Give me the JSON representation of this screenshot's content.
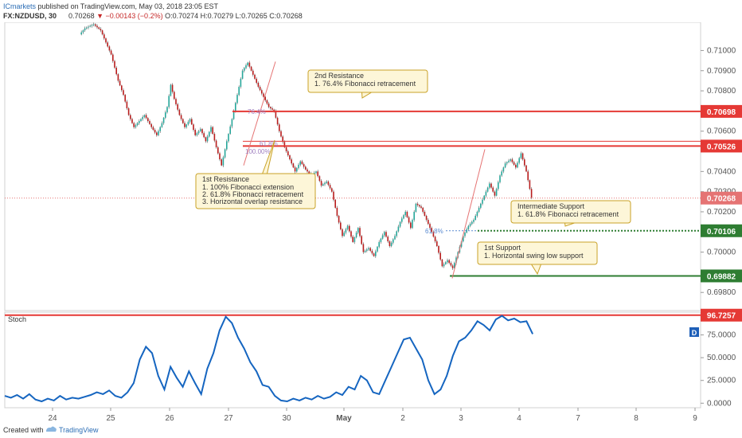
{
  "header": {
    "publisher": "ICmarkets",
    "published_text": "published on TradingView.com, May 03, 2018 23:05 EST",
    "symbol": "FX:NZDUSD, 30",
    "last": "0.70268",
    "change": "▼ −0.00143 (−0.2%)",
    "ohlc": "O:0.70274 H:0.70279 L:0.70265 C:0.70268"
  },
  "footer": {
    "created_with": "Created with",
    "brand": "TradingView"
  },
  "colors": {
    "up": "#26a69a",
    "down": "#b71c1c",
    "resistance": "#e53935",
    "support": "#2e7d32",
    "stoch": "#1565c0",
    "annotation_bg": "#fdf6d8",
    "annotation_border": "#c9a227"
  },
  "chart_data": [
    {
      "type": "candlestick",
      "symbol": "FX:NZDUSD",
      "interval": "30",
      "x_tick_labels": [
        "24",
        "25",
        "26",
        "27",
        "30",
        "May",
        "2",
        "3",
        "4",
        "7",
        "8",
        "9"
      ],
      "y_tick_labels": [
        "0.71000",
        "0.70900",
        "0.70800",
        "0.70600",
        "0.70400",
        "0.70300",
        "0.70200",
        "0.70000",
        "0.69800"
      ],
      "ylim": [
        0.6971,
        0.7114
      ],
      "price_marker": 0.70268,
      "path": [
        [
          0,
          0.7108
        ],
        [
          3,
          0.7111
        ],
        [
          8,
          0.7113
        ],
        [
          12,
          0.711
        ],
        [
          15,
          0.7104
        ],
        [
          18,
          0.7098
        ],
        [
          22,
          0.7085
        ],
        [
          25,
          0.7078
        ],
        [
          28,
          0.7068
        ],
        [
          31,
          0.7062
        ],
        [
          34,
          0.7065
        ],
        [
          37,
          0.7068
        ],
        [
          41,
          0.7062
        ],
        [
          44,
          0.7058
        ],
        [
          47,
          0.7064
        ],
        [
          50,
          0.7072
        ],
        [
          52,
          0.7083
        ],
        [
          54,
          0.7076
        ],
        [
          57,
          0.7068
        ],
        [
          60,
          0.7062
        ],
        [
          63,
          0.7066
        ],
        [
          66,
          0.7058
        ],
        [
          69,
          0.7061
        ],
        [
          72,
          0.7055
        ],
        [
          75,
          0.7062
        ],
        [
          78,
          0.7052
        ],
        [
          81,
          0.7043
        ],
        [
          84,
          0.7055
        ],
        [
          87,
          0.7066
        ],
        [
          90,
          0.7078
        ],
        [
          93,
          0.709
        ],
        [
          96,
          0.7094
        ],
        [
          99,
          0.7088
        ],
        [
          102,
          0.7082
        ],
        [
          105,
          0.7077
        ],
        [
          108,
          0.7072
        ],
        [
          111,
          0.707
        ],
        [
          114,
          0.706
        ],
        [
          117,
          0.7052
        ],
        [
          120,
          0.7046
        ],
        [
          123,
          0.704
        ],
        [
          126,
          0.7045
        ],
        [
          129,
          0.7041
        ],
        [
          132,
          0.7038
        ],
        [
          135,
          0.704
        ],
        [
          138,
          0.7033
        ],
        [
          141,
          0.7035
        ],
        [
          144,
          0.703
        ],
        [
          147,
          0.7018
        ],
        [
          150,
          0.7008
        ],
        [
          153,
          0.7013
        ],
        [
          156,
          0.7005
        ],
        [
          159,
          0.7012
        ],
        [
          162,
          0.7
        ],
        [
          165,
          0.7002
        ],
        [
          168,
          0.6998
        ],
        [
          171,
          0.7005
        ],
        [
          174,
          0.701
        ],
        [
          177,
          0.7003
        ],
        [
          180,
          0.7008
        ],
        [
          183,
          0.7015
        ],
        [
          186,
          0.702
        ],
        [
          189,
          0.7012
        ],
        [
          192,
          0.7024
        ],
        [
          195,
          0.7022
        ],
        [
          198,
          0.7016
        ],
        [
          201,
          0.701
        ],
        [
          204,
          0.7003
        ],
        [
          207,
          0.6993
        ],
        [
          210,
          0.6996
        ],
        [
          213,
          0.6992
        ],
        [
          216,
          0.7
        ],
        [
          219,
          0.7008
        ],
        [
          222,
          0.7013
        ],
        [
          225,
          0.7016
        ],
        [
          228,
          0.7022
        ],
        [
          231,
          0.7028
        ],
        [
          234,
          0.7034
        ],
        [
          237,
          0.7028
        ],
        [
          240,
          0.7038
        ],
        [
          243,
          0.7044
        ],
        [
          246,
          0.7046
        ],
        [
          249,
          0.7042
        ],
        [
          252,
          0.7049
        ],
        [
          255,
          0.704
        ],
        [
          258,
          0.7027
        ]
      ],
      "levels": [
        {
          "name": "2nd Resistance",
          "value": "0.70698",
          "color": "#e53935"
        },
        {
          "name": "1st Resistance",
          "value": "0.70526",
          "color": "#e53935"
        },
        {
          "name": "Intermediate Support",
          "value": "0.70106",
          "color": "#2e7d32"
        },
        {
          "name": "1st Support",
          "value": "0.69882",
          "color": "#2e7d32"
        }
      ],
      "current_price": {
        "value": "0.70268",
        "color": "#e57373"
      },
      "fib_labels": {
        "retrace_764": "76.4%",
        "ext_100": "100.00%",
        "retrace_618_res": "61.8%",
        "retrace_618_sup": "61.8%"
      },
      "annotations": [
        {
          "title": "2nd Resistance",
          "lines": [
            "1. 76.4% Fibonacci retracement"
          ]
        },
        {
          "title": "1st Resistance",
          "lines": [
            "1. 100% Fibonacci extension",
            "2. 61.8% Fibonacci retracement",
            "3. Horizontal overlap resistance"
          ]
        },
        {
          "title": "Intermediate Support",
          "lines": [
            "1. 61.8% Fibonacci retracement"
          ]
        },
        {
          "title": "1st Support",
          "lines": [
            "1. Horizontal swing low support"
          ]
        }
      ]
    },
    {
      "type": "line",
      "title": "Stoch",
      "y_tick_labels": [
        "75.0000",
        "50.0000",
        "25.0000",
        "0.0000"
      ],
      "ylim": [
        -5,
        100
      ],
      "level_label": "96.7257",
      "d_badge": "D",
      "values": [
        [
          0,
          8
        ],
        [
          3,
          6
        ],
        [
          6,
          9
        ],
        [
          9,
          5
        ],
        [
          12,
          10
        ],
        [
          15,
          4
        ],
        [
          18,
          2
        ],
        [
          21,
          5
        ],
        [
          24,
          3
        ],
        [
          27,
          8
        ],
        [
          30,
          4
        ],
        [
          33,
          6
        ],
        [
          36,
          5
        ],
        [
          39,
          7
        ],
        [
          42,
          9
        ],
        [
          45,
          12
        ],
        [
          48,
          10
        ],
        [
          51,
          14
        ],
        [
          54,
          8
        ],
        [
          57,
          6
        ],
        [
          60,
          12
        ],
        [
          63,
          22
        ],
        [
          66,
          48
        ],
        [
          69,
          62
        ],
        [
          72,
          55
        ],
        [
          75,
          30
        ],
        [
          78,
          15
        ],
        [
          81,
          40
        ],
        [
          84,
          28
        ],
        [
          87,
          18
        ],
        [
          90,
          35
        ],
        [
          93,
          22
        ],
        [
          96,
          10
        ],
        [
          99,
          38
        ],
        [
          102,
          55
        ],
        [
          105,
          80
        ],
        [
          108,
          95
        ],
        [
          111,
          88
        ],
        [
          114,
          72
        ],
        [
          117,
          60
        ],
        [
          120,
          45
        ],
        [
          123,
          35
        ],
        [
          126,
          20
        ],
        [
          129,
          18
        ],
        [
          132,
          8
        ],
        [
          135,
          3
        ],
        [
          138,
          2
        ],
        [
          141,
          5
        ],
        [
          144,
          3
        ],
        [
          147,
          6
        ],
        [
          150,
          4
        ],
        [
          153,
          8
        ],
        [
          156,
          5
        ],
        [
          159,
          7
        ],
        [
          162,
          12
        ],
        [
          165,
          9
        ],
        [
          168,
          18
        ],
        [
          171,
          15
        ],
        [
          174,
          30
        ],
        [
          177,
          25
        ],
        [
          180,
          12
        ],
        [
          183,
          10
        ],
        [
          186,
          25
        ],
        [
          189,
          40
        ],
        [
          192,
          55
        ],
        [
          195,
          70
        ],
        [
          198,
          72
        ],
        [
          201,
          60
        ],
        [
          204,
          48
        ],
        [
          207,
          25
        ],
        [
          210,
          10
        ],
        [
          213,
          15
        ],
        [
          216,
          30
        ],
        [
          219,
          52
        ],
        [
          222,
          68
        ],
        [
          225,
          72
        ],
        [
          228,
          80
        ],
        [
          231,
          90
        ],
        [
          234,
          86
        ],
        [
          237,
          80
        ],
        [
          240,
          92
        ],
        [
          243,
          96
        ],
        [
          246,
          91
        ],
        [
          249,
          93
        ],
        [
          252,
          89
        ],
        [
          255,
          90
        ],
        [
          258,
          76
        ]
      ]
    }
  ]
}
